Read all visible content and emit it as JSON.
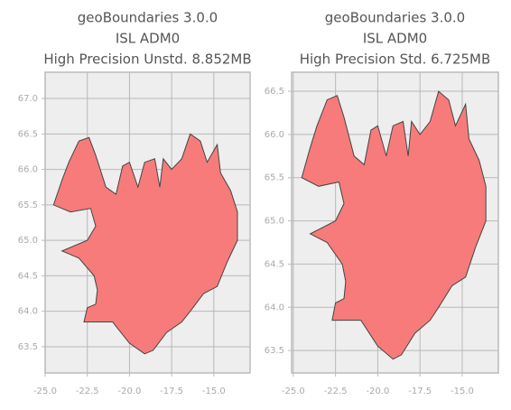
{
  "chart_data": [
    {
      "type": "map",
      "title": [
        "geoBoundaries 3.0.0",
        "ISL ADM0",
        "High Precision Unstd. 8.852MB"
      ],
      "xlim": [
        -25.0,
        -12.85
      ],
      "ylim": [
        63.13,
        67.37
      ],
      "xticks": [
        {
          "value": -25.0,
          "label": "-25.0"
        },
        -22.5,
        {
          "value": -20.0,
          "label": "-20.0"
        },
        -17.5,
        {
          "value": -15.0,
          "label": "-15.0"
        }
      ],
      "yticks": [
        63.5,
        {
          "value": 64.0,
          "label": "64.0"
        },
        64.5,
        {
          "value": 65.0,
          "label": "65.0"
        },
        65.5,
        {
          "value": 66.0,
          "label": "66.0"
        },
        66.5,
        {
          "value": 67.0,
          "label": "67.0"
        }
      ],
      "grid": true,
      "color": "#f77b7b",
      "outline": [
        [
          -24.5,
          65.5
        ],
        [
          -24.0,
          65.85
        ],
        [
          -23.6,
          66.1
        ],
        [
          -23.0,
          66.4
        ],
        [
          -22.4,
          66.45
        ],
        [
          -22.0,
          66.2
        ],
        [
          -21.4,
          65.75
        ],
        [
          -20.8,
          65.65
        ],
        [
          -20.4,
          66.05
        ],
        [
          -20.0,
          66.1
        ],
        [
          -19.5,
          65.75
        ],
        [
          -19.1,
          66.1
        ],
        [
          -18.5,
          66.15
        ],
        [
          -18.2,
          65.75
        ],
        [
          -18.0,
          66.15
        ],
        [
          -17.5,
          66.0
        ],
        [
          -16.9,
          66.15
        ],
        [
          -16.4,
          66.5
        ],
        [
          -15.8,
          66.4
        ],
        [
          -15.4,
          66.1
        ],
        [
          -14.8,
          66.35
        ],
        [
          -14.6,
          65.95
        ],
        [
          -14.0,
          65.7
        ],
        [
          -13.6,
          65.4
        ],
        [
          -13.6,
          65.0
        ],
        [
          -14.2,
          64.7
        ],
        [
          -14.8,
          64.35
        ],
        [
          -15.6,
          64.25
        ],
        [
          -16.4,
          64.0
        ],
        [
          -16.9,
          63.85
        ],
        [
          -17.8,
          63.7
        ],
        [
          -18.6,
          63.45
        ],
        [
          -19.1,
          63.4
        ],
        [
          -20.0,
          63.55
        ],
        [
          -21.0,
          63.85
        ],
        [
          -22.0,
          63.85
        ],
        [
          -22.7,
          63.85
        ],
        [
          -22.5,
          64.05
        ],
        [
          -22.0,
          64.1
        ],
        [
          -21.9,
          64.3
        ],
        [
          -22.1,
          64.5
        ],
        [
          -23.0,
          64.75
        ],
        [
          -24.0,
          64.85
        ],
        [
          -22.5,
          65.0
        ],
        [
          -22.0,
          65.2
        ],
        [
          -22.3,
          65.45
        ],
        [
          -23.5,
          65.4
        ]
      ]
    },
    {
      "type": "map",
      "title": [
        "geoBoundaries 3.0.0",
        "ISL ADM0",
        "High Precision Std. 6.725MB"
      ],
      "xlim": [
        -25.1,
        -12.86
      ],
      "ylim": [
        63.24,
        66.72
      ],
      "xticks": [
        {
          "value": -25.0,
          "label": "-25.0"
        },
        -22.5,
        {
          "value": -20.0,
          "label": "-20.0"
        },
        -17.5,
        {
          "value": -15.0,
          "label": "-15.0"
        }
      ],
      "yticks": [
        63.5,
        {
          "value": 64.0,
          "label": "64.0"
        },
        64.5,
        {
          "value": 65.0,
          "label": "65.0"
        },
        65.5,
        {
          "value": 66.0,
          "label": "66.0"
        },
        66.5
      ],
      "grid": true,
      "color": "#f77b7b",
      "outline": [
        [
          -24.5,
          65.5
        ],
        [
          -24.0,
          65.85
        ],
        [
          -23.6,
          66.1
        ],
        [
          -23.0,
          66.4
        ],
        [
          -22.4,
          66.45
        ],
        [
          -22.0,
          66.2
        ],
        [
          -21.4,
          65.75
        ],
        [
          -20.8,
          65.65
        ],
        [
          -20.4,
          66.05
        ],
        [
          -20.0,
          66.1
        ],
        [
          -19.5,
          65.75
        ],
        [
          -19.1,
          66.1
        ],
        [
          -18.5,
          66.15
        ],
        [
          -18.2,
          65.75
        ],
        [
          -18.0,
          66.15
        ],
        [
          -17.5,
          66.0
        ],
        [
          -16.9,
          66.15
        ],
        [
          -16.4,
          66.5
        ],
        [
          -15.8,
          66.4
        ],
        [
          -15.4,
          66.1
        ],
        [
          -14.8,
          66.35
        ],
        [
          -14.6,
          65.95
        ],
        [
          -14.0,
          65.7
        ],
        [
          -13.6,
          65.4
        ],
        [
          -13.6,
          65.0
        ],
        [
          -14.2,
          64.7
        ],
        [
          -14.8,
          64.35
        ],
        [
          -15.6,
          64.25
        ],
        [
          -16.4,
          64.0
        ],
        [
          -16.9,
          63.85
        ],
        [
          -17.8,
          63.7
        ],
        [
          -18.6,
          63.45
        ],
        [
          -19.1,
          63.4
        ],
        [
          -20.0,
          63.55
        ],
        [
          -21.0,
          63.85
        ],
        [
          -22.0,
          63.85
        ],
        [
          -22.7,
          63.85
        ],
        [
          -22.5,
          64.05
        ],
        [
          -22.0,
          64.1
        ],
        [
          -21.9,
          64.3
        ],
        [
          -22.1,
          64.5
        ],
        [
          -23.0,
          64.75
        ],
        [
          -24.0,
          64.85
        ],
        [
          -22.5,
          65.0
        ],
        [
          -22.0,
          65.2
        ],
        [
          -22.3,
          65.45
        ],
        [
          -23.5,
          65.4
        ]
      ]
    }
  ]
}
